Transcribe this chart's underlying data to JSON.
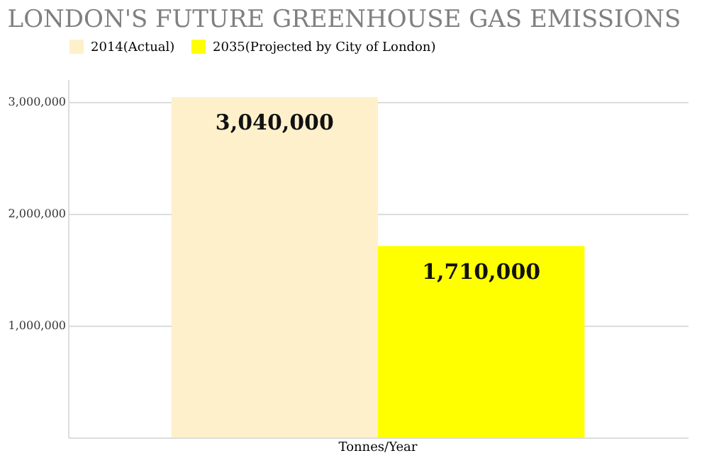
{
  "chart_data": {
    "type": "bar",
    "title": "LONDON'S FUTURE GREENHOUSE GAS EMISSIONS",
    "categories": [
      "Tonnes/Year"
    ],
    "series": [
      {
        "name": "2014(Actual)",
        "color": "#fff0cc",
        "values": [
          3040000
        ],
        "value_labels": [
          "3,040,000"
        ]
      },
      {
        "name": "2035(Projected by City of London)",
        "color": "#ffff00",
        "values": [
          1710000
        ],
        "value_labels": [
          "1,710,000"
        ]
      }
    ],
    "ylim": [
      0,
      3200000
    ],
    "yticks": [
      {
        "value": 0,
        "label": null
      },
      {
        "value": 1000000,
        "label": "1,000,000"
      },
      {
        "value": 2000000,
        "label": "2,000,000"
      },
      {
        "value": 3000000,
        "label": "3,000,000"
      }
    ],
    "grid": "y",
    "legend": "top left"
  }
}
